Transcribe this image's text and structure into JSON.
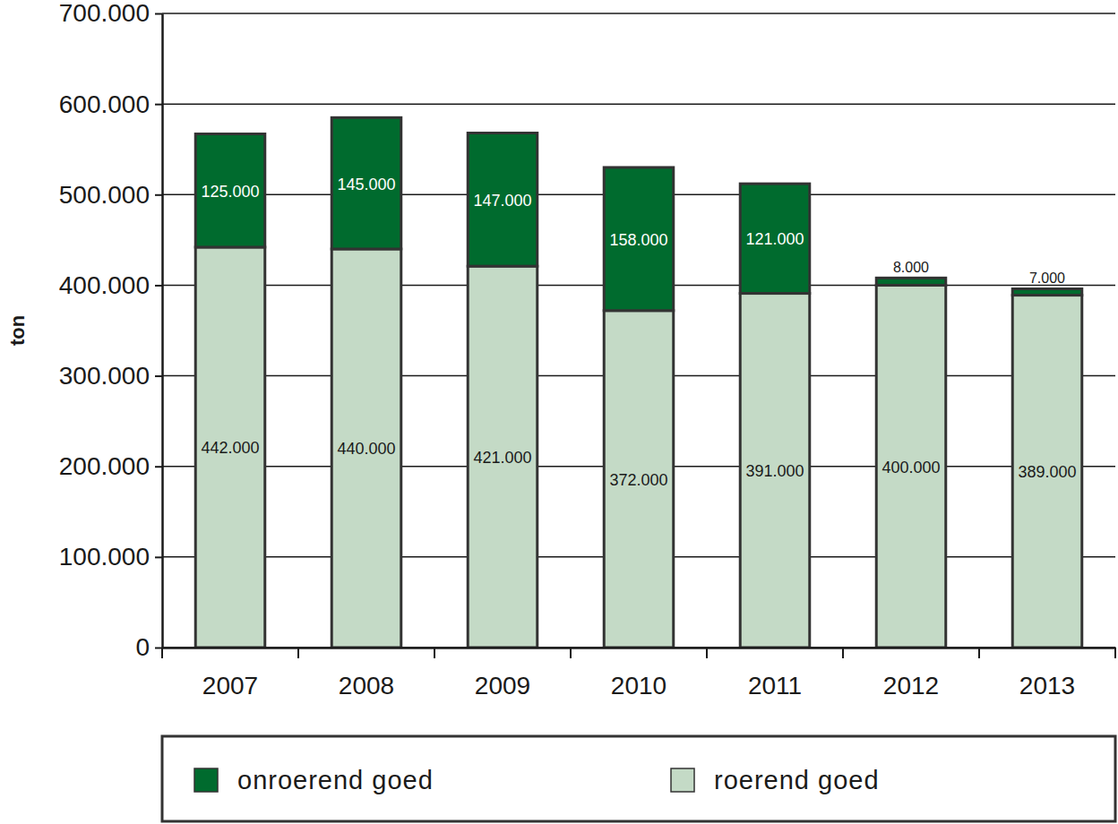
{
  "chart_data": {
    "type": "bar",
    "stacked": true,
    "data_labels": true,
    "grid": true,
    "legend": "bottom",
    "ylabel": "ton",
    "categories": [
      "2007",
      "2008",
      "2009",
      "2010",
      "2011",
      "2012",
      "2013"
    ],
    "series": [
      {
        "name": "onroerend goed",
        "color": "#006b2e",
        "values": [
          125000,
          145000,
          147000,
          158000,
          121000,
          8000,
          7000
        ],
        "value_labels": [
          "125.000",
          "145.000",
          "147.000",
          "158.000",
          "121.000",
          "8.000",
          "7.000"
        ]
      },
      {
        "name": "roerend goed",
        "color": "#c4dac6",
        "values": [
          442000,
          440000,
          421000,
          372000,
          391000,
          400000,
          389000
        ],
        "value_labels": [
          "442.000",
          "440.000",
          "421.000",
          "372.000",
          "391.000",
          "400.000",
          "389.000"
        ]
      }
    ],
    "ylim": [
      0,
      700000
    ],
    "yticks": [
      0,
      {
        "value": 100000,
        "label": "100.000"
      },
      {
        "value": 200000,
        "label": "200.000"
      },
      {
        "value": 300000,
        "label": "300.000"
      },
      {
        "value": 400000,
        "label": "400.000"
      },
      {
        "value": 500000,
        "label": "500.000"
      },
      {
        "value": 600000,
        "label": "600.000"
      },
      {
        "value": 700000,
        "label": "700.000"
      }
    ]
  }
}
